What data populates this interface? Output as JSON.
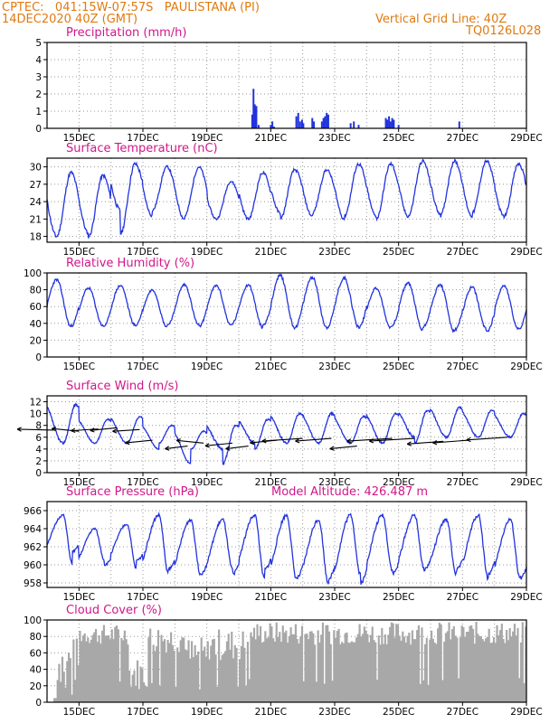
{
  "header": {
    "line1": "CPTEC:   041:15W-07:57S   PAULISTANA (PI)",
    "line2": "14DEC2020 40Z (GMT)",
    "right1": "Vertical Grid Line: 40Z",
    "right2": "TQ0126L028"
  },
  "x_ticks": [
    "15DEC",
    "17DEC",
    "19DEC",
    "21DEC",
    "23DEC",
    "25DEC",
    "27DEC",
    "29DEC"
  ],
  "colors": {
    "line": "#2233dd",
    "bar": "#2233dd",
    "cloud": "#a8a8a8",
    "title": "#d0178a",
    "header": "#e07a10"
  },
  "chart_data": [
    {
      "type": "bar",
      "title": "Precipitation (mm/h)",
      "ylim": [
        0,
        5
      ],
      "yticks": [
        0,
        1,
        2,
        3,
        4,
        5
      ],
      "x_unit": "days since 14DEC2020",
      "x": [
        6.42,
        6.46,
        6.5,
        6.55,
        6.62,
        7.0,
        7.05,
        7.1,
        7.8,
        7.86,
        7.92,
        7.98,
        8.02,
        8.3,
        8.35,
        8.6,
        8.65,
        8.7,
        8.75,
        8.8,
        9.5,
        9.6,
        9.75,
        10.6,
        10.65,
        10.7,
        10.75,
        10.8,
        10.85,
        11.0,
        12.9
      ],
      "values": [
        0.8,
        2.3,
        1.4,
        1.3,
        0.2,
        0.2,
        0.4,
        0.1,
        0.7,
        0.9,
        0.4,
        0.5,
        0.3,
        0.6,
        0.4,
        0.4,
        0.6,
        0.7,
        0.9,
        0.8,
        0.3,
        0.4,
        0.2,
        0.6,
        0.5,
        0.7,
        0.4,
        0.6,
        0.5,
        0.2,
        0.4
      ]
    },
    {
      "type": "line",
      "title": "Surface Temperature (nC)",
      "ylim": [
        17,
        31.5
      ],
      "yticks": [
        18,
        21,
        24,
        27,
        30
      ],
      "series": [
        {
          "mins": [
            18,
            18,
            18.5,
            22.5,
            21.5,
            21,
            21,
            21,
            22,
            21.5,
            21,
            21.5,
            21.5,
            22,
            21.5
          ],
          "maxs": [
            29,
            28.5,
            30.5,
            30,
            30,
            27.5,
            29,
            29.5,
            29.5,
            30.5,
            30.5,
            31,
            31,
            31,
            30.5
          ]
        }
      ]
    },
    {
      "type": "line",
      "title": "Relative Humidity (%)",
      "ylim": [
        0,
        100
      ],
      "yticks": [
        0,
        20,
        40,
        60,
        80,
        100
      ],
      "series": [
        {
          "mins": [
            37,
            36,
            37,
            38,
            36,
            38,
            38,
            35,
            35,
            35,
            36,
            35,
            32,
            30,
            33
          ],
          "maxs": [
            92,
            82,
            85,
            80,
            86,
            85,
            86,
            97,
            95,
            94,
            82,
            88,
            86,
            83,
            85
          ]
        }
      ]
    },
    {
      "type": "line",
      "title": "Surface Wind (m/s)",
      "ylim": [
        0,
        13
      ],
      "yticks": [
        0,
        2,
        4,
        6,
        8,
        10,
        12
      ],
      "series": [
        {
          "mins": [
            5,
            5,
            5,
            5,
            4,
            1.5,
            4,
            5,
            5,
            5,
            5,
            5,
            6,
            6,
            6
          ],
          "maxs": [
            11.5,
            9,
            9.5,
            8,
            7,
            8,
            9,
            10,
            10,
            9.5,
            10,
            10.5,
            11,
            10.5,
            10
          ]
        }
      ],
      "arrows_note": "wind direction arrows"
    },
    {
      "type": "line",
      "title": "Surface Pressure (hPa)",
      "annotation": "Model Altitude: 426.487 m",
      "ylim": [
        957.5,
        967
      ],
      "yticks": [
        958,
        960,
        962,
        964,
        966
      ],
      "series": [
        {
          "mins": [
            961.5,
            960,
            960.5,
            959.5,
            959,
            959,
            959.5,
            958.5,
            958.5,
            958,
            959,
            959.5,
            959.5,
            959,
            958.5
          ],
          "maxs": [
            965.5,
            964,
            964.5,
            965.5,
            965,
            965,
            965.5,
            965.5,
            965,
            965.5,
            965.5,
            965.5,
            965,
            965.5,
            965
          ]
        }
      ]
    },
    {
      "type": "area",
      "title": "Cloud Cover (%)",
      "ylim": [
        0,
        100
      ],
      "yticks": [
        0,
        20,
        40,
        60,
        80,
        100
      ]
    }
  ]
}
